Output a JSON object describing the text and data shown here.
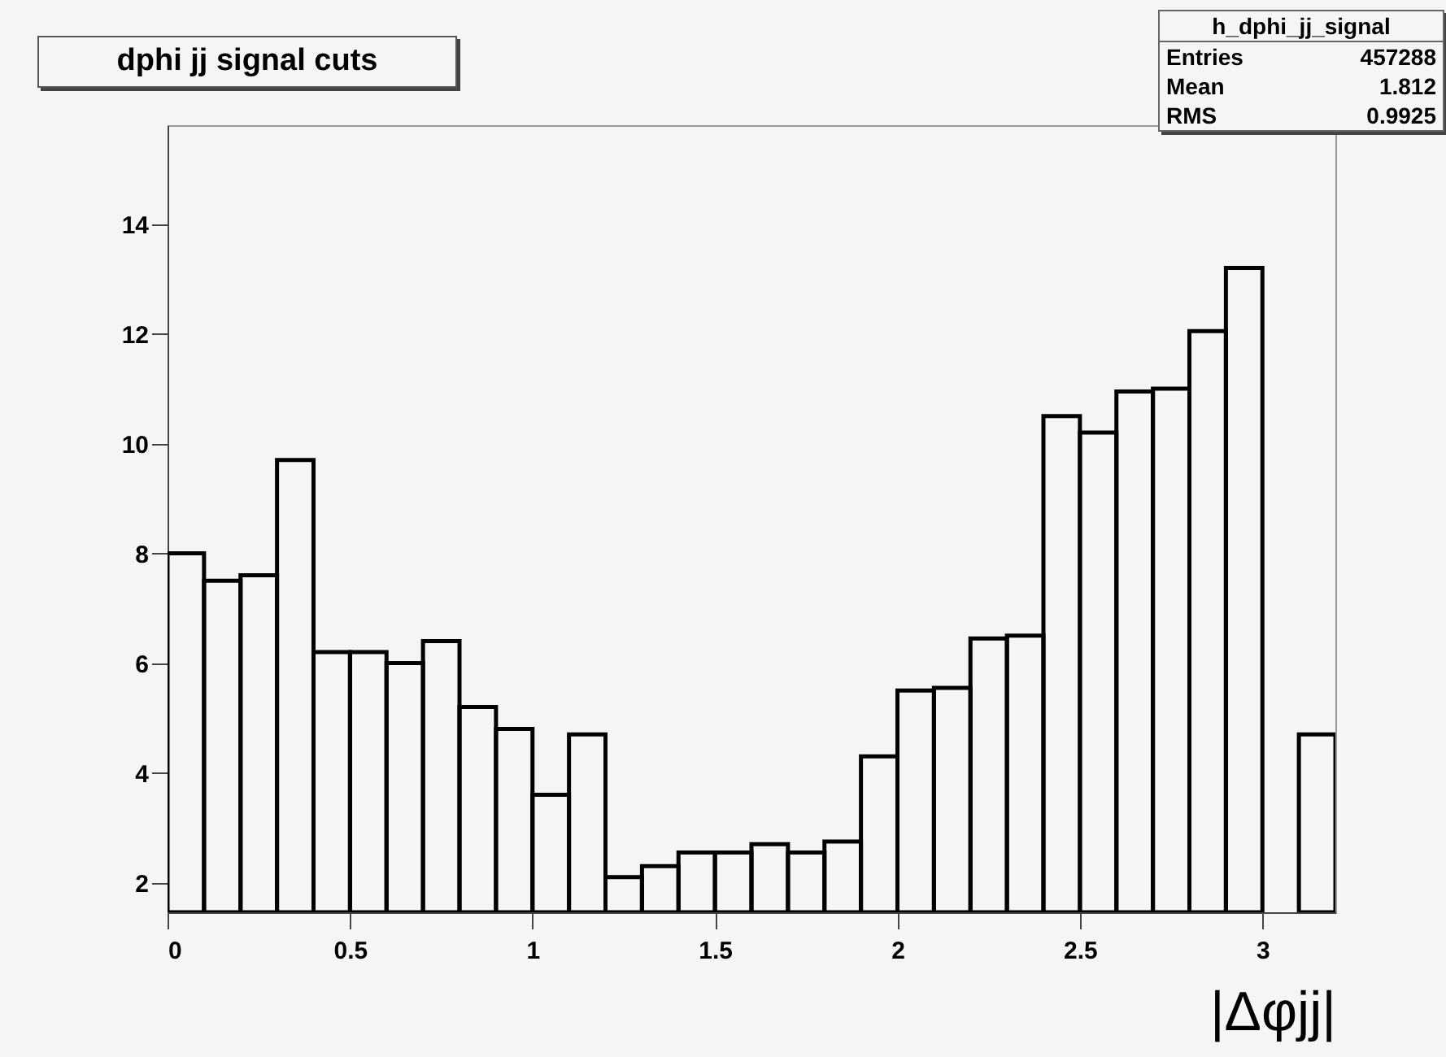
{
  "chart_data": {
    "type": "histogram",
    "title": "dphi jj signal cuts",
    "xlabel": "|Δφjj|",
    "bins": [
      0,
      0.1,
      0.2,
      0.3,
      0.4,
      0.5,
      0.6,
      0.7,
      0.8,
      0.9,
      1.0,
      1.1,
      1.2,
      1.3,
      1.4,
      1.5,
      1.6,
      1.7,
      1.8,
      1.9,
      2.0,
      2.1,
      2.2,
      2.3,
      2.4,
      2.5,
      2.6,
      2.7,
      2.8,
      2.9,
      3.0,
      3.1,
      3.2
    ],
    "values": [
      8.0,
      7.5,
      7.6,
      9.7,
      6.2,
      6.2,
      6.0,
      6.4,
      5.2,
      4.8,
      3.6,
      4.7,
      2.1,
      2.3,
      2.55,
      2.55,
      2.7,
      2.55,
      2.75,
      4.3,
      5.5,
      5.55,
      6.45,
      6.5,
      10.5,
      10.2,
      10.95,
      11.0,
      12.05,
      13.2,
      null,
      4.7
    ],
    "color": "#000000",
    "xlim": [
      0,
      3.2
    ],
    "xticks": [
      0,
      0.5,
      1,
      1.5,
      2,
      2.5,
      3
    ],
    "ylim": [
      1.46,
      15.8
    ],
    "yticks": [
      2,
      4,
      6,
      8,
      10,
      12,
      14
    ],
    "annotations": [
      "h_dphi_jj_signal",
      "Entries 457288",
      "Mean 1.812",
      "RMS 0.9925"
    ]
  }
}
